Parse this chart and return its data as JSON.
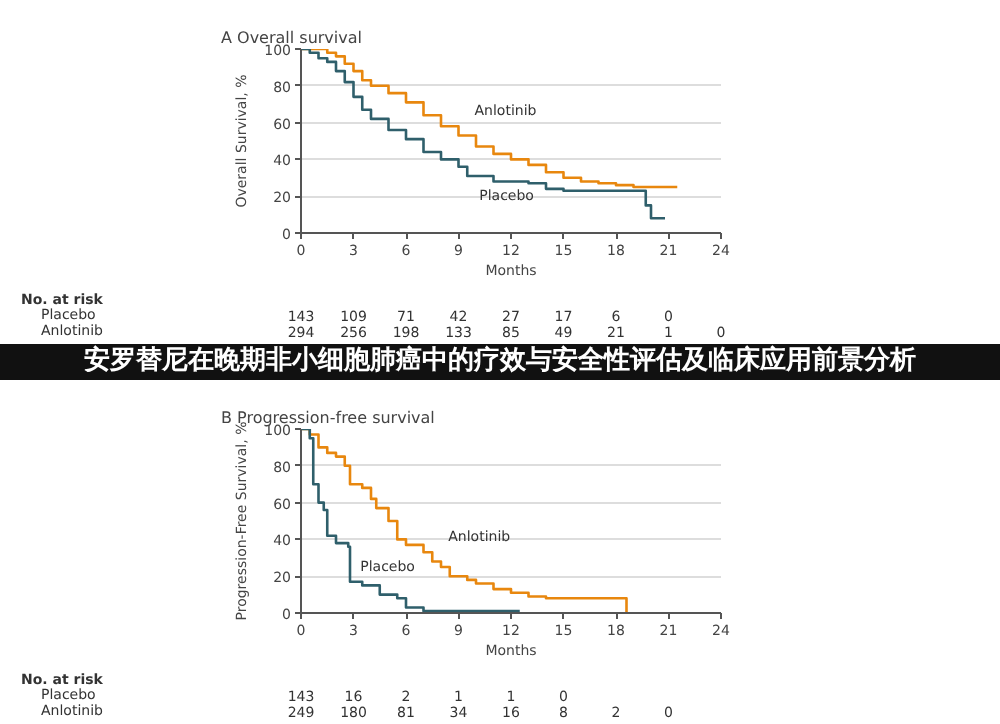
{
  "chart_data": [
    {
      "type": "step",
      "title": "A Overall survival",
      "xlabel": "Months",
      "ylabel": "Overall Survival, %",
      "xlim": [
        0,
        24
      ],
      "xticks": [
        0,
        3,
        6,
        9,
        12,
        15,
        18,
        21,
        24
      ],
      "ylim": [
        0,
        100
      ],
      "yticks": [
        0,
        20,
        40,
        60,
        80,
        100
      ],
      "grid": "y",
      "annotations": [
        "No. at risk",
        "Placebo 143 109 71 42 27 17 6 0",
        "Anlotinib 294 256 198 133 85 49 21 1 0",
        "安罗替尼在晚期非小细胞肺癌中的疗效与安全性评估及临床应用前景分析"
      ],
      "series": [
        {
          "name": "Anlotinib",
          "color": "#e8870e",
          "x": [
            0,
            0.8,
            1.5,
            2,
            2.5,
            3,
            3.5,
            4,
            5,
            6,
            7,
            8,
            9,
            10,
            11,
            12,
            13,
            14,
            15,
            16,
            17,
            18,
            19,
            20,
            21.5
          ],
          "values": [
            100,
            100,
            98,
            96,
            92,
            88,
            83,
            80,
            76,
            71,
            64,
            58,
            53,
            47,
            43,
            40,
            37,
            33,
            30,
            28,
            27,
            26,
            25,
            25,
            25
          ]
        },
        {
          "name": "Placebo",
          "color": "#2f5f6b",
          "x": [
            0,
            0.5,
            1,
            1.5,
            2,
            2.5,
            3,
            3.5,
            4,
            5,
            6,
            7,
            8,
            9,
            9.5,
            10,
            11,
            12,
            13,
            14,
            15,
            16,
            17,
            18,
            19,
            19.7,
            20,
            20.8
          ],
          "values": [
            100,
            98,
            95,
            93,
            88,
            82,
            74,
            67,
            62,
            56,
            51,
            44,
            40,
            36,
            31,
            31,
            28,
            28,
            27,
            24,
            23,
            23,
            23,
            23,
            23,
            15,
            8,
            8
          ]
        }
      ]
    },
    {
      "type": "step",
      "title": "B Progression-free survival",
      "xlabel": "Months",
      "ylabel": "Progression-Free Survival, %",
      "xlim": [
        0,
        24
      ],
      "xticks": [
        0,
        3,
        6,
        9,
        12,
        15,
        18,
        21,
        24
      ],
      "ylim": [
        0,
        100
      ],
      "yticks": [
        0,
        20,
        40,
        60,
        80,
        100
      ],
      "grid": "y",
      "annotations": [
        "No. at risk",
        "Placebo 143 16 2 1 1 0",
        "Anlotinib 249 180 81 34 16 8 2 0"
      ],
      "series": [
        {
          "name": "Anlotinib",
          "color": "#e8870e",
          "x": [
            0,
            0.5,
            1,
            1.5,
            2,
            2.5,
            2.8,
            3.5,
            4,
            4.3,
            5,
            5.5,
            6,
            7,
            7.5,
            8,
            8.5,
            9.5,
            10,
            11,
            12,
            13,
            14,
            15,
            16,
            17,
            18.5,
            18.6
          ],
          "values": [
            100,
            97,
            90,
            87,
            85,
            80,
            70,
            68,
            62,
            57,
            50,
            40,
            37,
            33,
            28,
            25,
            20,
            18,
            16,
            13,
            11,
            9,
            8,
            8,
            8,
            8,
            8,
            0
          ]
        },
        {
          "name": "Placebo",
          "color": "#2f5f6b",
          "x": [
            0,
            0.5,
            0.7,
            1,
            1.3,
            1.5,
            2,
            2.7,
            2.8,
            3.5,
            4.5,
            5.5,
            6,
            7,
            12.5
          ],
          "values": [
            100,
            95,
            70,
            60,
            56,
            42,
            38,
            36,
            17,
            15,
            10,
            8,
            3,
            1,
            1
          ]
        }
      ]
    }
  ]
}
